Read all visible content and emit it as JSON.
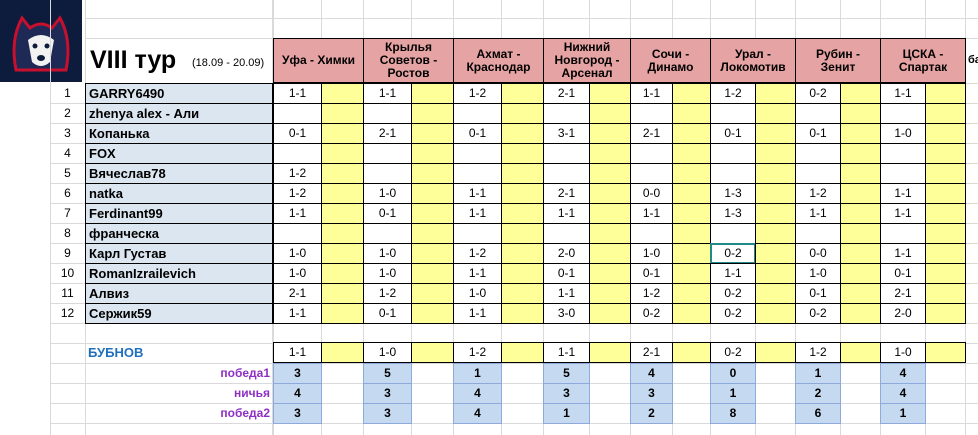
{
  "header": {
    "title": "VIII тур",
    "dates": "(18.09 - 20.09)",
    "extra": "ба"
  },
  "matches": [
    "Уфа - Химки",
    "Крылья\nСоветов -\nРостов",
    "Ахмат -\nКраснодар",
    "Нижний\nНовгород -\nАрсенал",
    "Сочи -\nДинамо",
    "Урал -\nЛокомотив",
    "Рубин -\nЗенит",
    "ЦСКА -\nСпартак"
  ],
  "players": [
    {
      "num": 1,
      "name": "GARRY6490",
      "scores": [
        "1-1",
        "1-1",
        "1-2",
        "2-1",
        "1-1",
        "1-2",
        "0-2",
        "1-1"
      ]
    },
    {
      "num": 2,
      "name": "zhenya alex - Али"
    },
    {
      "num": 3,
      "name": "Копанька",
      "scores": [
        "0-1",
        "2-1",
        "0-1",
        "3-1",
        "2-1",
        "0-1",
        "0-1",
        "1-0"
      ]
    },
    {
      "num": 4,
      "name": "FOX"
    },
    {
      "num": 5,
      "name": "Вячеслав78",
      "scores": [
        "1-2",
        null,
        null,
        null,
        null,
        null,
        null,
        null
      ]
    },
    {
      "num": 6,
      "name": "natka",
      "scores": [
        "1-2",
        "1-0",
        "1-1",
        "2-1",
        "0-0",
        "1-3",
        "1-2",
        "1-1"
      ]
    },
    {
      "num": 7,
      "name": "Ferdinant99",
      "scores": [
        "1-1",
        "0-1",
        "1-1",
        "1-1",
        "1-1",
        "1-3",
        "1-1",
        "1-1"
      ]
    },
    {
      "num": 8,
      "name": "франческа"
    },
    {
      "num": 9,
      "name": "Карл Густав",
      "scores": [
        "1-0",
        "1-0",
        "1-2",
        "2-0",
        "1-0",
        "0-2",
        "0-0",
        "1-1"
      ]
    },
    {
      "num": 10,
      "name": "RomanIzrailevich",
      "scores": [
        "1-0",
        "1-0",
        "1-1",
        "0-1",
        "0-1",
        "1-1",
        "1-0",
        "0-1"
      ]
    },
    {
      "num": 11,
      "name": "Алвиз",
      "scores": [
        "2-1",
        "1-2",
        "1-0",
        "1-1",
        "1-2",
        "0-2",
        "0-1",
        "2-1"
      ]
    },
    {
      "num": 12,
      "name": "Сержик59",
      "scores": [
        "1-1",
        "0-1",
        "1-1",
        "3-0",
        "0-2",
        "0-2",
        "0-2",
        "2-0"
      ]
    }
  ],
  "expert": {
    "name": "БУБНОВ",
    "scores": [
      "1-1",
      "1-0",
      "1-2",
      "1-1",
      "2-1",
      "0-2",
      "1-2",
      "1-0"
    ]
  },
  "stats": [
    {
      "label": "победа1",
      "values": [
        3,
        5,
        1,
        5,
        4,
        0,
        1,
        4
      ]
    },
    {
      "label": "ничья",
      "values": [
        4,
        3,
        4,
        3,
        3,
        1,
        2,
        4
      ]
    },
    {
      "label": "победа2",
      "values": [
        3,
        3,
        4,
        1,
        2,
        8,
        6,
        1
      ]
    }
  ]
}
